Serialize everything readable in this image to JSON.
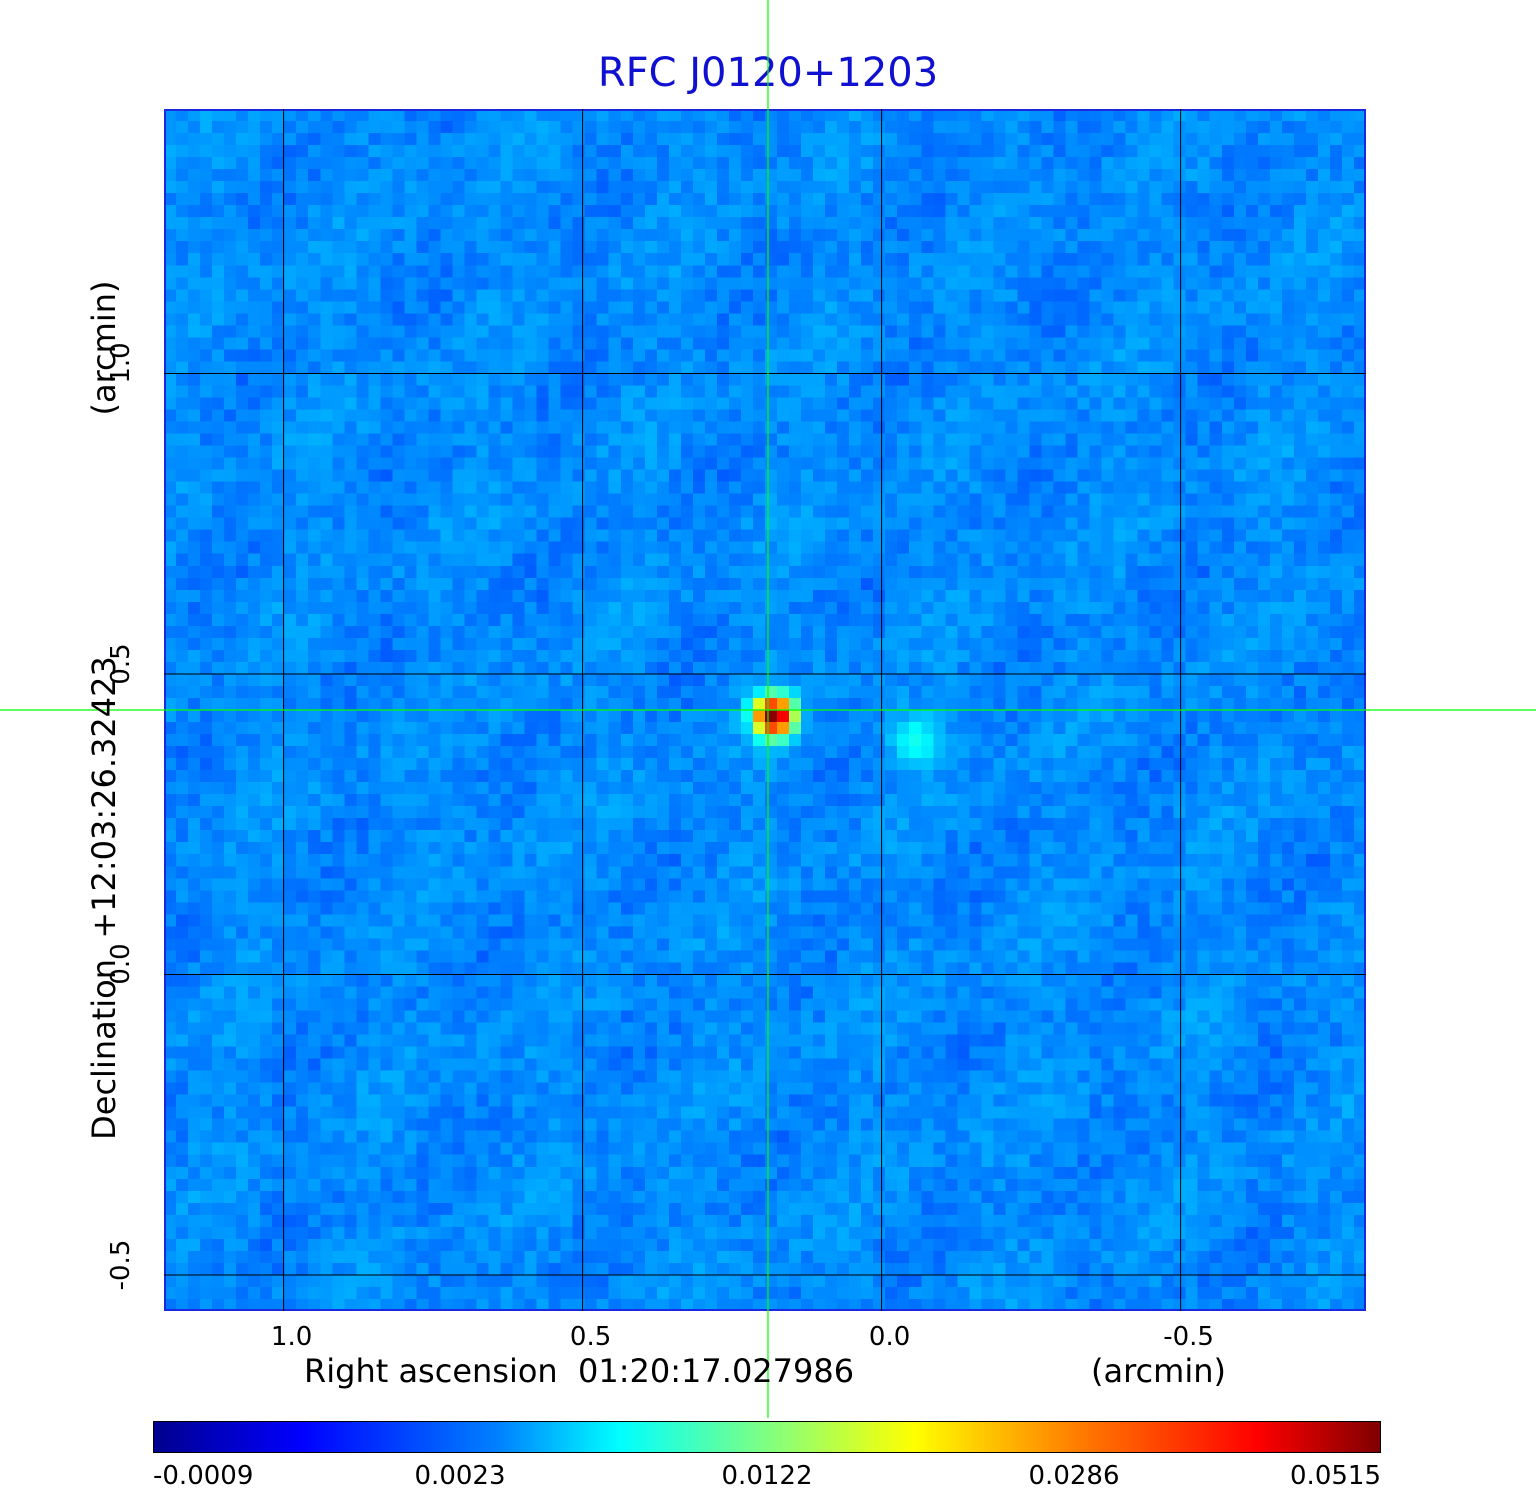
{
  "chart_data": {
    "type": "heatmap",
    "title": "RFC J0120+1203",
    "xlabel": "Right ascension  01:20:17.027986",
    "xunit": "(arcmin)",
    "ylabel": "Declination  +12:03:26.32423",
    "yunit": "(arcmin)",
    "xlim": [
      1.2,
      -0.81
    ],
    "ylim": [
      -0.56,
      1.44
    ],
    "x_ticks": [
      "1.0",
      "0.5",
      "0.0",
      "-0.5"
    ],
    "y_ticks": [
      "1.0",
      "0.5",
      "0.0",
      "-0.5"
    ],
    "x_tick_values": [
      1.0,
      0.5,
      0.0,
      -0.5
    ],
    "y_tick_values": [
      1.0,
      0.5,
      0.0,
      -0.5
    ],
    "grid": true,
    "crosshair": {
      "x": 0.19,
      "y": 0.44
    },
    "sources": [
      {
        "x": 0.19,
        "y": 0.44,
        "peak": 0.0515
      },
      {
        "x": -0.05,
        "y": 0.4,
        "peak": 0.004
      }
    ],
    "colorbar": {
      "ticks": [
        "-0.0009",
        "0.0023",
        "0.0122",
        "0.0286",
        "0.0515"
      ],
      "tick_values": [
        -0.0009,
        0.0023,
        0.0122,
        0.0286,
        0.0515
      ]
    },
    "colormap": "jet",
    "grid_color": "#000000",
    "crosshair_color": "#00ff00",
    "title_color": "#1010d0"
  }
}
